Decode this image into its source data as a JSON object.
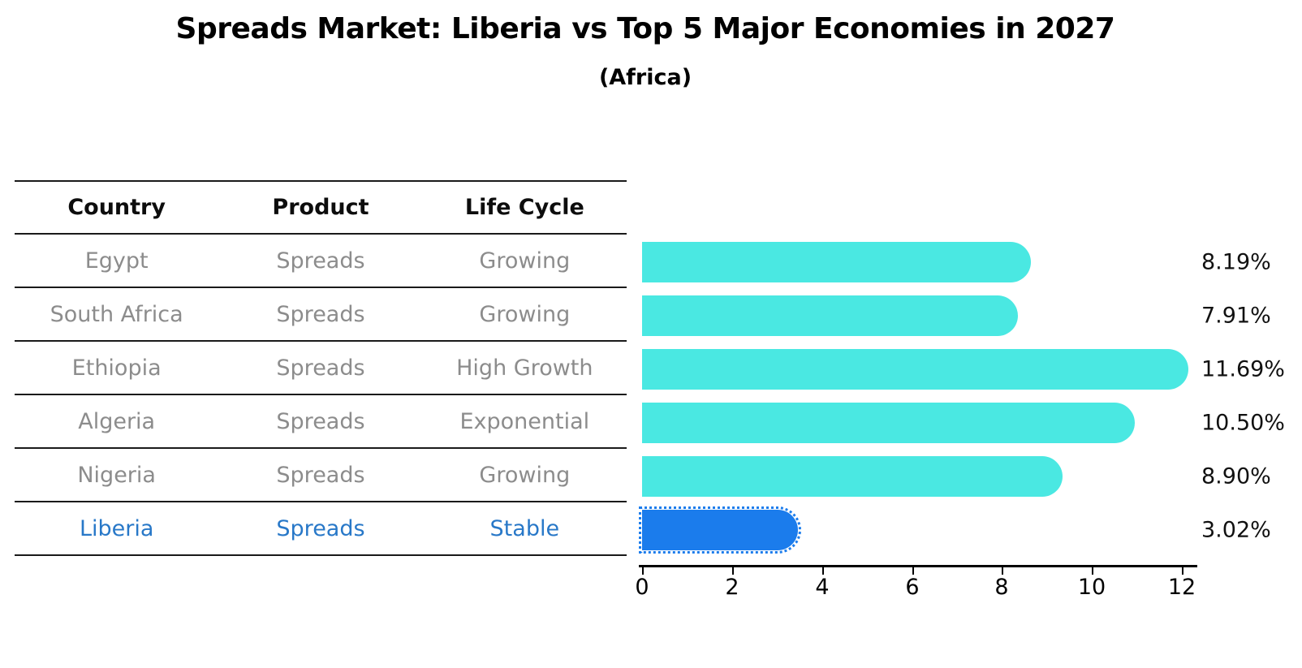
{
  "chart_data": {
    "type": "bar",
    "orientation": "horizontal",
    "title": "Spreads Market: Liberia vs Top 5 Major Economies in 2027",
    "subtitle": "(Africa)",
    "categories": [
      "Egypt",
      "South Africa",
      "Ethiopia",
      "Algeria",
      "Nigeria",
      "Liberia"
    ],
    "values": [
      8.19,
      7.91,
      11.69,
      10.5,
      8.9,
      3.02
    ],
    "value_labels": [
      "8.19%",
      "7.91%",
      "11.69%",
      "10.50%",
      "8.90%",
      "3.02%"
    ],
    "xticks": [
      "0",
      "2",
      "4",
      "6",
      "8",
      "10",
      "12"
    ],
    "xlim": [
      0,
      12.4
    ],
    "grid": false,
    "legend": false,
    "bar_color": "#4AE8E2",
    "highlight_index": 5,
    "highlight_color": "#1B7CEC",
    "value_label_position": "right-of-plot"
  },
  "table": {
    "headers": [
      "Country",
      "Product",
      "Life Cycle"
    ],
    "rows": [
      {
        "country": "Egypt",
        "product": "Spreads",
        "life_cycle": "Growing",
        "highlight": false
      },
      {
        "country": "South Africa",
        "product": "Spreads",
        "life_cycle": "Growing",
        "highlight": false
      },
      {
        "country": "Ethiopia",
        "product": "Spreads",
        "life_cycle": "High Growth",
        "highlight": false
      },
      {
        "country": "Algeria",
        "product": "Spreads",
        "life_cycle": "Exponential",
        "highlight": false
      },
      {
        "country": "Nigeria",
        "product": "Spreads",
        "life_cycle": "Growing",
        "highlight": false
      },
      {
        "country": "Liberia",
        "product": "Spreads",
        "life_cycle": "Stable",
        "highlight": true
      }
    ],
    "text_color": "#8c8c8c",
    "highlight_text_color": "#2878C8",
    "header_text_color": "#0d0d0d"
  }
}
